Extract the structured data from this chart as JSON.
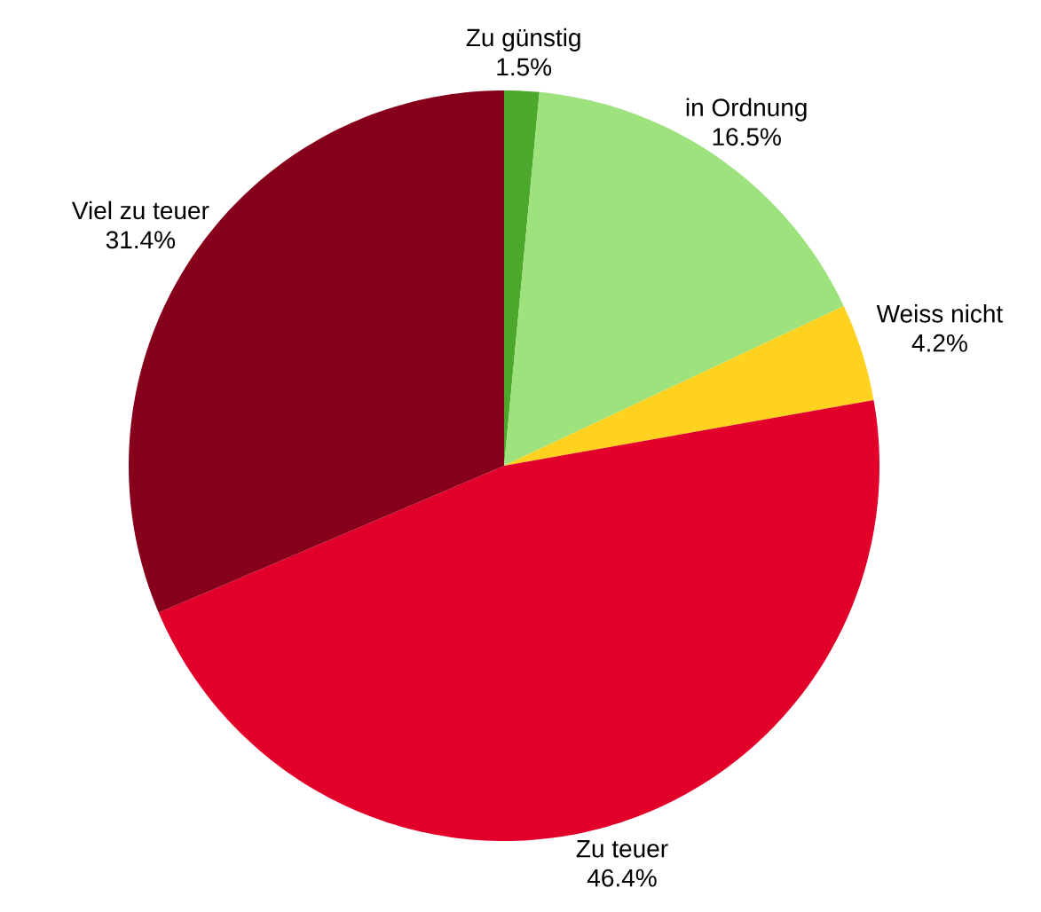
{
  "chart_data": {
    "type": "pie",
    "categories": [
      "Zu günstig",
      "in Ordnung",
      "Weiss nicht",
      "Zu teuer",
      "Viel zu teuer"
    ],
    "values": [
      1.5,
      16.5,
      4.2,
      46.4,
      31.4
    ],
    "value_labels": [
      "1.5%",
      "16.5%",
      "4.2%",
      "46.4%",
      "31.4%"
    ],
    "colors": [
      "#4ca82a",
      "#9de27d",
      "#ffd21f",
      "#e2002b",
      "#86001b"
    ]
  }
}
